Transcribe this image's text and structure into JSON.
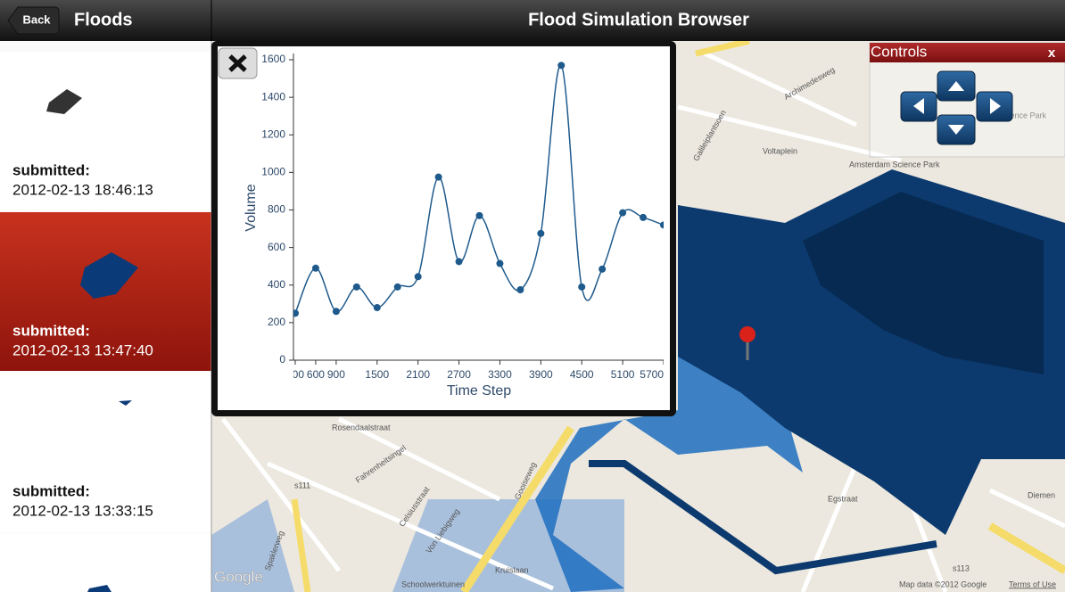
{
  "header": {
    "back": "Back",
    "section": "Floods",
    "title": "Flood Simulation Browser"
  },
  "floods": [
    {
      "label": "submitted:",
      "date": "2012-02-13 18:46:13"
    },
    {
      "label": "submitted:",
      "date": "2012-02-13 13:47:40"
    },
    {
      "label": "submitted:",
      "date": "2012-02-13 13:33:15"
    }
  ],
  "controls": {
    "title": "Controls",
    "close": "x"
  },
  "map_labels": [
    "Archimedesweg",
    "Galileiplantsoen",
    "Voltaplein",
    "Science Park",
    "Amsterdam Science Park",
    "Gooiseweg",
    "Rosendaalstraat",
    "Fahrenheitsingel",
    "Celsiusstraat",
    "Von Liebigweg",
    "Egstraat",
    "Diemen",
    "Spaklerweg",
    "Kruislaan",
    "Schoolwerktuinen",
    "s111",
    "s113",
    "Google",
    "Map data ©2012 Google",
    "Terms of Use"
  ],
  "chart": {
    "type": "line",
    "x_label": "Time Step",
    "y_label": "Volume",
    "color": "#1f5a8c",
    "x": [
      300,
      600,
      900,
      1200,
      1500,
      1800,
      2100,
      2400,
      2700,
      3000,
      3300,
      3600,
      3900,
      4200,
      4500,
      4800,
      5100,
      5400,
      5700
    ],
    "values": [
      250,
      490,
      260,
      390,
      280,
      390,
      445,
      975,
      525,
      770,
      515,
      375,
      675,
      1570,
      390,
      485,
      785,
      760,
      720
    ],
    "xlim": [
      300,
      5700
    ],
    "ylim": [
      0,
      1600
    ],
    "xticks": [
      300,
      600,
      900,
      1500,
      2100,
      2700,
      3300,
      3900,
      4500,
      5100,
      5700
    ],
    "yticks": [
      0,
      200,
      400,
      600,
      800,
      1000,
      1200,
      1400,
      1600
    ]
  }
}
